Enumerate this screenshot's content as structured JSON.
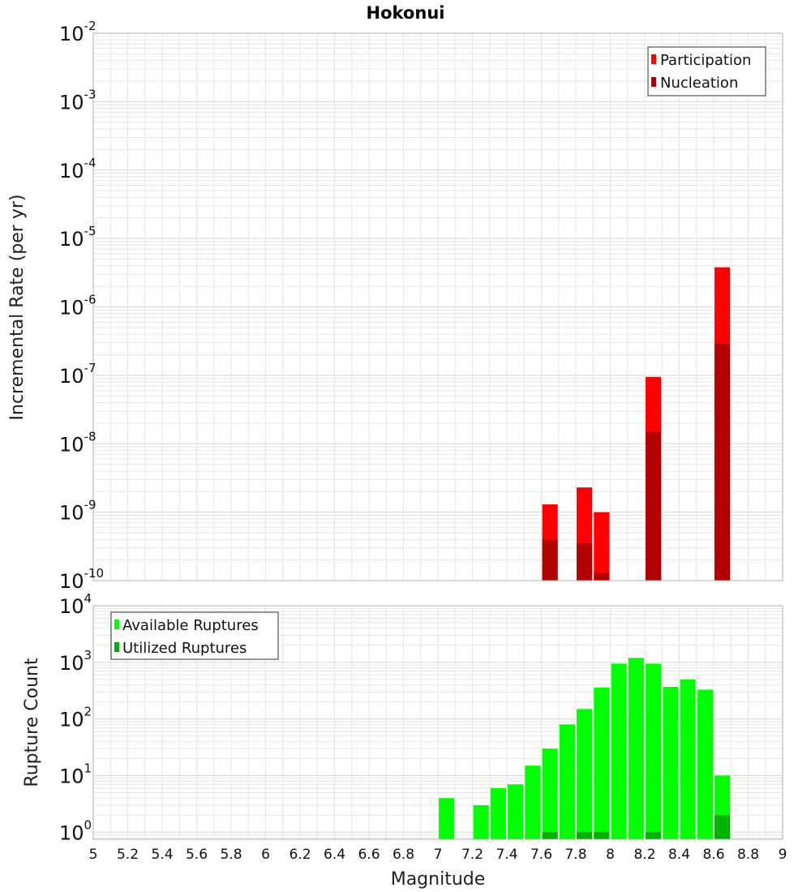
{
  "title": "Hokonui",
  "colors": {
    "participation": "#ff0000",
    "nucleation": "#b20000",
    "available": "#00ff00",
    "utilized": "#00b200",
    "grid": "#e6e6e6",
    "frame": "#b0b0b0"
  },
  "chart_data": [
    {
      "type": "bar",
      "title": "Hokonui",
      "ylabel": "Incremental Rate (per yr)",
      "xlabel": "",
      "yscale": "log",
      "xlim": [
        5,
        9
      ],
      "ylim": [
        1e-10,
        0.01
      ],
      "y_ticks": [
        {
          "base": "10",
          "exp": "-2",
          "value": 0.01
        },
        {
          "base": "10",
          "exp": "-3",
          "value": 0.001
        },
        {
          "base": "10",
          "exp": "-4",
          "value": 0.0001
        },
        {
          "base": "10",
          "exp": "-5",
          "value": 1e-05
        },
        {
          "base": "10",
          "exp": "-6",
          "value": 1e-06
        },
        {
          "base": "10",
          "exp": "-7",
          "value": 1e-07
        },
        {
          "base": "10",
          "exp": "-8",
          "value": 1e-08
        },
        {
          "base": "10",
          "exp": "-9",
          "value": 1e-09
        },
        {
          "base": "10",
          "exp": "-10",
          "value": 1e-10
        }
      ],
      "legend": {
        "position": "top-right"
      },
      "series": [
        {
          "name": "Participation",
          "x": [
            7.65,
            7.85,
            7.95,
            8.25,
            8.65
          ],
          "values": [
            1.3e-09,
            2.3e-09,
            1e-09,
            9.5e-08,
            3.8e-06
          ]
        },
        {
          "name": "Nucleation",
          "x": [
            7.65,
            7.85,
            7.95,
            8.25,
            8.65
          ],
          "values": [
            4e-10,
            3.5e-10,
            1.3e-10,
            1.5e-08,
            2.9e-07
          ]
        }
      ]
    },
    {
      "type": "bar",
      "ylabel": "Rupture Count",
      "xlabel": "Magnitude",
      "yscale": "log",
      "xlim": [
        5,
        9
      ],
      "ylim": [
        0.75,
        10000
      ],
      "x_ticks": [
        "5",
        "5.2",
        "5.4",
        "5.6",
        "5.8",
        "6",
        "6.2",
        "6.4",
        "6.6",
        "6.8",
        "7",
        "7.2",
        "7.4",
        "7.6",
        "7.8",
        "8",
        "8.2",
        "8.4",
        "8.6",
        "8.8",
        "9"
      ],
      "y_ticks": [
        {
          "base": "10",
          "exp": "4",
          "value": 10000
        },
        {
          "base": "10",
          "exp": "3",
          "value": 1000
        },
        {
          "base": "10",
          "exp": "2",
          "value": 100
        },
        {
          "base": "10",
          "exp": "1",
          "value": 10
        },
        {
          "base": "10",
          "exp": "0",
          "value": 1
        }
      ],
      "legend": {
        "position": "top-left"
      },
      "series": [
        {
          "name": "Available Ruptures",
          "x": [
            7.05,
            7.25,
            7.35,
            7.45,
            7.55,
            7.65,
            7.75,
            7.85,
            7.95,
            8.05,
            8.15,
            8.25,
            8.35,
            8.45,
            8.55,
            8.65
          ],
          "values": [
            4,
            3,
            6,
            7,
            15,
            30,
            80,
            150,
            360,
            950,
            1200,
            950,
            370,
            500,
            330,
            10
          ]
        },
        {
          "name": "Utilized Ruptures",
          "x": [
            7.65,
            7.85,
            7.95,
            8.25,
            8.65
          ],
          "values": [
            1,
            1,
            1,
            1,
            2
          ]
        }
      ]
    }
  ]
}
